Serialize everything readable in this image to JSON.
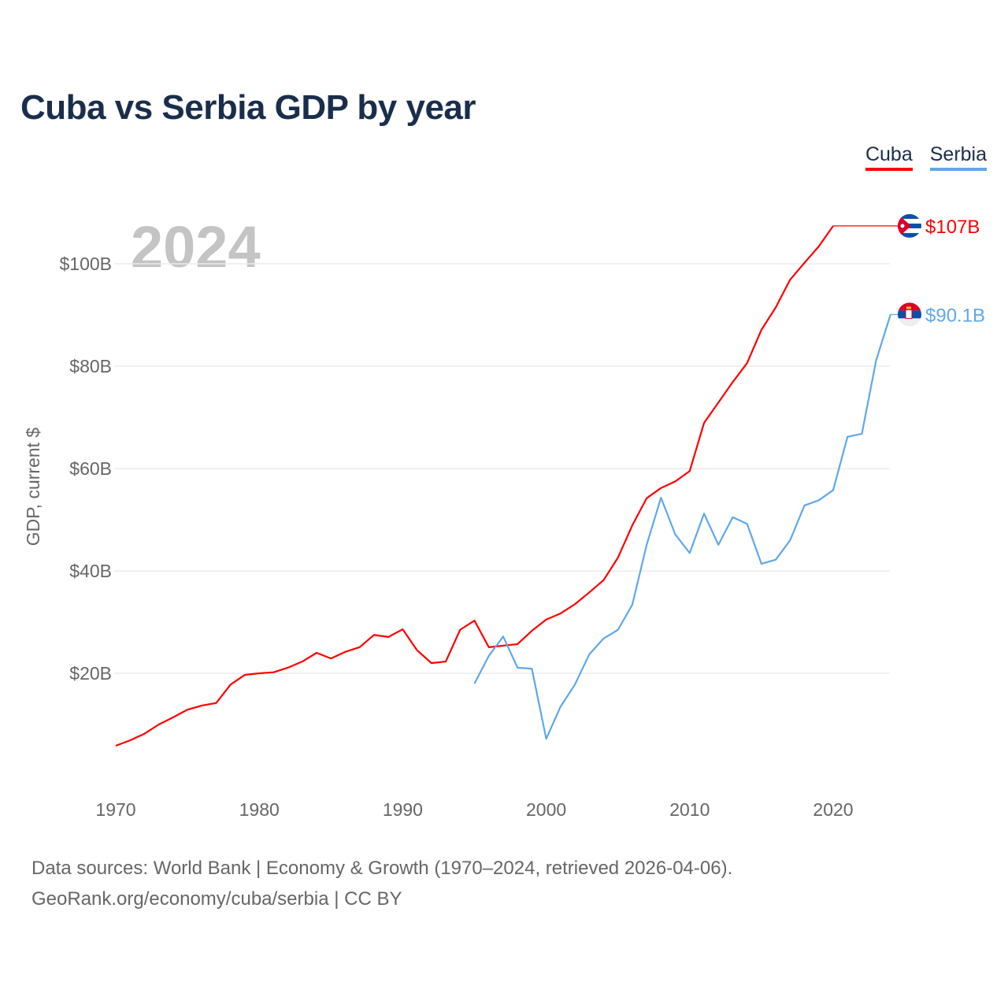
{
  "title": "Cuba vs Serbia GDP by year",
  "legend": [
    {
      "name": "Cuba",
      "color": "#ff0000"
    },
    {
      "name": "Serbia",
      "color": "#5fa8ea"
    }
  ],
  "footer": {
    "line1": "Data sources: World Bank | Economy & Growth (1970–2024, retrieved 2026-04-06).",
    "line2": "GeoRank.org/economy/cuba/serbia | CC BY"
  },
  "chart_data": {
    "type": "line",
    "title": "Cuba vs Serbia GDP by year",
    "ylabel": "GDP, current $",
    "xlabel": "",
    "year_label": "2024",
    "xlim": [
      1970,
      2024
    ],
    "ylim": [
      0,
      110
    ],
    "x_ticks": [
      1970,
      1980,
      1990,
      2000,
      2010,
      2020
    ],
    "y_ticks": [
      {
        "v": 20,
        "label": "$20B"
      },
      {
        "v": 40,
        "label": "$40B"
      },
      {
        "v": 60,
        "label": "$60B"
      },
      {
        "v": 80,
        "label": "$80B"
      },
      {
        "v": 100,
        "label": "$100B"
      }
    ],
    "grid": true,
    "legend_position": "top-right",
    "series": [
      {
        "name": "Cuba",
        "color": "#ff0000",
        "end_label": "$107B",
        "flag": "cuba-flag",
        "end_value": 107.4,
        "x": [
          1970,
          1971,
          1972,
          1973,
          1974,
          1975,
          1976,
          1977,
          1978,
          1979,
          1980,
          1981,
          1982,
          1983,
          1984,
          1985,
          1986,
          1987,
          1988,
          1989,
          1990,
          1991,
          1992,
          1993,
          1994,
          1995,
          1996,
          1997,
          1998,
          1999,
          2000,
          2001,
          2002,
          2003,
          2004,
          2005,
          2006,
          2007,
          2008,
          2009,
          2010,
          2011,
          2012,
          2013,
          2014,
          2015,
          2016,
          2017,
          2018,
          2019,
          2020
        ],
        "values": [
          5.85,
          6.9,
          8.2,
          10.0,
          11.4,
          12.9,
          13.7,
          14.2,
          17.8,
          19.7,
          20.0,
          20.2,
          21.1,
          22.3,
          24.0,
          22.9,
          24.2,
          25.1,
          27.5,
          27.1,
          28.6,
          24.5,
          22.0,
          22.3,
          28.5,
          30.3,
          25.1,
          25.4,
          25.7,
          28.3,
          30.5,
          31.7,
          33.5,
          35.8,
          38.2,
          42.6,
          48.9,
          54.2,
          56.2,
          57.5,
          59.5,
          68.9,
          72.9,
          76.9,
          80.6,
          87.1,
          91.5,
          96.9,
          100.2,
          103.4,
          107.4
        ]
      },
      {
        "name": "Serbia",
        "color": "#5fa8ea",
        "end_label": "$90.1B",
        "flag": "serbia-flag",
        "end_value": 90.1,
        "x": [
          1995,
          1996,
          1997,
          1998,
          1999,
          2000,
          2001,
          2002,
          2003,
          2004,
          2005,
          2006,
          2007,
          2008,
          2009,
          2010,
          2011,
          2012,
          2013,
          2014,
          2015,
          2016,
          2017,
          2018,
          2019,
          2020,
          2021,
          2022,
          2023,
          2024
        ],
        "values": [
          18.0,
          23.4,
          27.2,
          21.1,
          20.9,
          7.2,
          13.5,
          17.8,
          23.7,
          26.8,
          28.5,
          33.4,
          45.1,
          54.3,
          47.1,
          43.5,
          51.2,
          45.1,
          50.5,
          49.2,
          41.4,
          42.2,
          46.0,
          52.8,
          53.8,
          55.8,
          66.2,
          66.8,
          81.2,
          90.1
        ]
      }
    ]
  }
}
